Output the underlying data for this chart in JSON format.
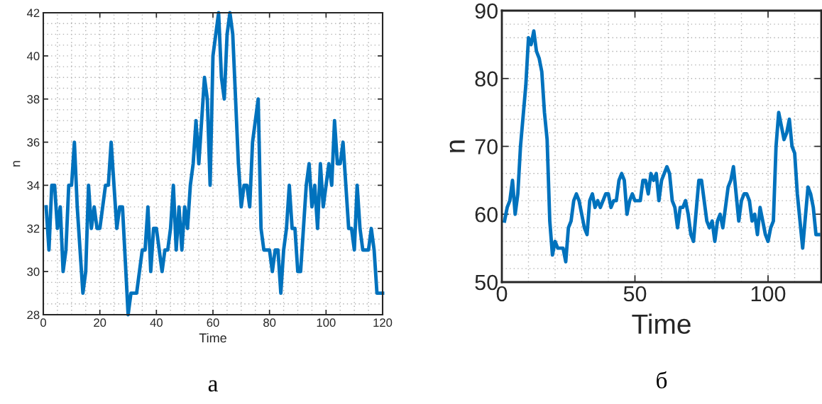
{
  "chart_data": [
    {
      "type": "line",
      "xlabel": "Time",
      "ylabel": "n",
      "annotations": [
        "а"
      ],
      "xlim": [
        0,
        120
      ],
      "ylim": [
        28,
        42
      ],
      "xticks": [
        0,
        20,
        40,
        60,
        80,
        100,
        120
      ],
      "yticks": [
        28,
        30,
        32,
        34,
        36,
        38,
        40,
        42
      ],
      "grid": true,
      "legend": false,
      "series": [
        {
          "color": "#0072bd",
          "x": [
            1,
            2,
            3,
            4,
            5,
            6,
            7,
            8,
            9,
            10,
            11,
            12,
            14,
            15,
            16,
            17,
            18,
            19,
            20,
            22,
            23,
            24,
            26,
            27,
            28,
            30,
            31,
            33,
            35,
            36,
            37,
            38,
            39,
            40,
            42,
            43,
            44,
            45,
            46,
            47,
            48,
            49,
            50,
            51,
            52,
            53,
            54,
            55,
            57,
            58,
            59,
            60,
            62,
            63,
            64,
            65,
            66,
            67,
            69,
            70,
            71,
            72,
            73,
            74,
            76,
            77,
            78,
            80,
            81,
            82,
            83,
            84,
            85,
            86,
            87,
            88,
            89,
            90,
            91,
            93,
            94,
            95,
            96,
            97,
            98,
            99,
            101,
            102,
            103,
            104,
            105,
            106,
            108,
            109,
            110,
            111,
            112,
            113,
            115,
            116,
            117,
            118,
            120
          ],
          "values": [
            33,
            31,
            34,
            34,
            32,
            33,
            30,
            31,
            34,
            34,
            36,
            33,
            29,
            30,
            34,
            32,
            33,
            32,
            32,
            34,
            34,
            36,
            32,
            33,
            33,
            28,
            29,
            29,
            31,
            31,
            33,
            30,
            32,
            32,
            30,
            31,
            31,
            32,
            34,
            31,
            33,
            31,
            33,
            32,
            34,
            35,
            37,
            35,
            39,
            38,
            34,
            40,
            42,
            39,
            38,
            41,
            42,
            41,
            35,
            33,
            34,
            34,
            33,
            36,
            38,
            32,
            31,
            31,
            30,
            31,
            31,
            29,
            31,
            32,
            34,
            32,
            32,
            30,
            30,
            34,
            35,
            33,
            34,
            32,
            35,
            33,
            35,
            34,
            37,
            35,
            35,
            36,
            32,
            32,
            31,
            34,
            32,
            31,
            31,
            32,
            31,
            29,
            29
          ]
        }
      ]
    },
    {
      "type": "line",
      "xlabel": "Time",
      "ylabel": "n",
      "annotations": [
        "б"
      ],
      "xlim": [
        0,
        120
      ],
      "ylim": [
        50,
        90
      ],
      "xticks": [
        0,
        50,
        100
      ],
      "yticks": [
        50,
        60,
        70,
        80,
        90
      ],
      "grid": true,
      "legend": false,
      "series": [
        {
          "color": "#0072bd",
          "x": [
            1,
            2,
            3,
            4,
            5,
            6,
            7,
            9,
            10,
            11,
            12,
            13,
            14,
            15,
            16,
            17,
            18,
            19,
            20,
            21,
            23,
            24,
            25,
            26,
            27,
            28,
            29,
            31,
            32,
            33,
            34,
            35,
            36,
            37,
            39,
            40,
            41,
            42,
            43,
            44,
            45,
            46,
            47,
            48,
            49,
            50,
            52,
            53,
            54,
            55,
            56,
            57,
            58,
            59,
            60,
            62,
            63,
            64,
            65,
            66,
            67,
            68,
            69,
            70,
            71,
            72,
            74,
            75,
            77,
            78,
            79,
            80,
            81,
            82,
            83,
            85,
            86,
            87,
            89,
            90,
            91,
            92,
            93,
            94,
            95,
            96,
            97,
            98,
            99,
            100,
            101,
            102,
            103,
            104,
            105,
            106,
            107,
            108,
            109,
            110,
            111,
            113,
            115,
            116,
            117,
            118,
            119
          ],
          "values": [
            59,
            61,
            62,
            65,
            60,
            63,
            70,
            79,
            86,
            85,
            87,
            84,
            83,
            81,
            75,
            71,
            59,
            54,
            56,
            55,
            55,
            53,
            58,
            59,
            62,
            63,
            62,
            58,
            57,
            62,
            63,
            61,
            62,
            61,
            63,
            63,
            61,
            62,
            62,
            65,
            66,
            65,
            60,
            62,
            63,
            62,
            62,
            65,
            65,
            63,
            66,
            65,
            66,
            62,
            65,
            67,
            66,
            62,
            61,
            58,
            61,
            61,
            62,
            60,
            57,
            56,
            65,
            65,
            59,
            58,
            59,
            56,
            59,
            60,
            58,
            64,
            65,
            67,
            59,
            62,
            63,
            63,
            62,
            59,
            60,
            57,
            61,
            59,
            57,
            56,
            58,
            59,
            70,
            75,
            73,
            71,
            72,
            74,
            70,
            69,
            63,
            55,
            64,
            63,
            61,
            57,
            57
          ]
        }
      ]
    }
  ]
}
